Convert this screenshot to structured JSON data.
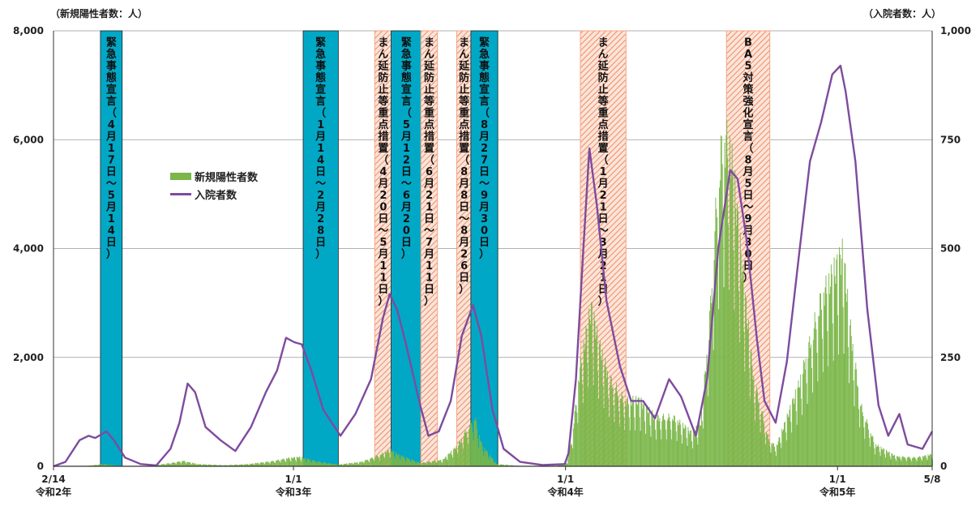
{
  "units": {
    "left": "（新規陽性者数：人）",
    "right": "（入院者数：人）"
  },
  "legend": {
    "bars": "新規陽性者数",
    "line": "入院者数"
  },
  "colors": {
    "bars": "#7ab648",
    "line": "#7e4b9e",
    "emergency": "#00a8c6",
    "semi": "#f4a584",
    "grid": "#999999"
  },
  "chart_data": {
    "type": "bar",
    "x_range": [
      "2020-02-14",
      "2023-05-08"
    ],
    "x_ticks": [
      {
        "date": "2020-02-14",
        "label1": "2/14",
        "label2": "令和2年"
      },
      {
        "date": "2021-01-01",
        "label1": "1/1",
        "label2": "令和3年"
      },
      {
        "date": "2022-01-01",
        "label1": "1/1",
        "label2": "令和4年"
      },
      {
        "date": "2023-01-01",
        "label1": "1/1",
        "label2": "令和5年"
      },
      {
        "date": "2023-05-08",
        "label1": "5/8",
        "label2": ""
      }
    ],
    "y_left": {
      "range": [
        0,
        8000
      ],
      "ticks": [
        "0",
        "2,000",
        "4,000",
        "6,000",
        "8,000"
      ]
    },
    "y_right": {
      "range": [
        0,
        1000
      ],
      "ticks": [
        "0",
        "250",
        "500",
        "750",
        "1,000"
      ]
    },
    "periods": [
      {
        "kind": "emergency",
        "start": "2020-04-17",
        "end": "2020-05-14",
        "text": "緊急事態宣言（4月17日～5月14日）"
      },
      {
        "kind": "emergency",
        "start": "2021-01-14",
        "end": "2021-02-28",
        "text": "緊急事態宣言（1月14日～2月28日）"
      },
      {
        "kind": "semi",
        "start": "2021-04-20",
        "end": "2021-05-11",
        "text": "まん延防止等重点措置（4月20日～5月11日）"
      },
      {
        "kind": "emergency",
        "start": "2021-05-12",
        "end": "2021-06-20",
        "text": "緊急事態宣言（5月12日～6月20日）"
      },
      {
        "kind": "semi",
        "start": "2021-06-21",
        "end": "2021-07-11",
        "text": "まん延防止等重点措置（6月21日～7月11日）"
      },
      {
        "kind": "semi",
        "start": "2021-08-08",
        "end": "2021-08-26",
        "text": "まん延防止等重点措置（8月8日～8月26日）"
      },
      {
        "kind": "emergency",
        "start": "2021-08-27",
        "end": "2021-09-30",
        "text": "緊急事態宣言（8月27日～9月30日）"
      },
      {
        "kind": "semi",
        "start": "2022-01-21",
        "end": "2022-03-21",
        "text": "まん延防止等重点措置（1月21日～3月21日）"
      },
      {
        "kind": "semi",
        "start": "2022-08-05",
        "end": "2022-09-30",
        "text": "BA5対策強化宣言（8月5日～9月30日）"
      }
    ],
    "series": [
      {
        "name": "新規陽性者数",
        "axis": "left",
        "points": [
          [
            "2020-02-14",
            0
          ],
          [
            "2020-04-01",
            10
          ],
          [
            "2020-04-20",
            40
          ],
          [
            "2020-05-15",
            5
          ],
          [
            "2020-06-20",
            5
          ],
          [
            "2020-07-20",
            60
          ],
          [
            "2020-08-05",
            100
          ],
          [
            "2020-08-25",
            40
          ],
          [
            "2020-09-30",
            20
          ],
          [
            "2020-11-01",
            40
          ],
          [
            "2020-12-01",
            90
          ],
          [
            "2020-12-25",
            150
          ],
          [
            "2021-01-10",
            170
          ],
          [
            "2021-02-01",
            90
          ],
          [
            "2021-03-01",
            30
          ],
          [
            "2021-04-01",
            80
          ],
          [
            "2021-04-25",
            200
          ],
          [
            "2021-05-10",
            300
          ],
          [
            "2021-05-20",
            220
          ],
          [
            "2021-06-20",
            60
          ],
          [
            "2021-07-20",
            120
          ],
          [
            "2021-08-10",
            400
          ],
          [
            "2021-08-22",
            700
          ],
          [
            "2021-09-01",
            900
          ],
          [
            "2021-09-10",
            400
          ],
          [
            "2021-09-30",
            40
          ],
          [
            "2021-11-01",
            8
          ],
          [
            "2021-12-20",
            10
          ],
          [
            "2022-01-03",
            80
          ],
          [
            "2022-01-10",
            600
          ],
          [
            "2022-01-20",
            1800
          ],
          [
            "2022-01-28",
            2400
          ],
          [
            "2022-02-04",
            2900
          ],
          [
            "2022-02-15",
            2200
          ],
          [
            "2022-03-01",
            1600
          ],
          [
            "2022-03-21",
            1200
          ],
          [
            "2022-04-10",
            1200
          ],
          [
            "2022-05-01",
            900
          ],
          [
            "2022-05-25",
            900
          ],
          [
            "2022-06-20",
            600
          ],
          [
            "2022-07-01",
            800
          ],
          [
            "2022-07-12",
            2500
          ],
          [
            "2022-07-22",
            4800
          ],
          [
            "2022-07-30",
            6000
          ],
          [
            "2022-08-08",
            5900
          ],
          [
            "2022-08-15",
            5200
          ],
          [
            "2022-08-25",
            3700
          ],
          [
            "2022-09-10",
            1600
          ],
          [
            "2022-09-30",
            500
          ],
          [
            "2022-10-10",
            350
          ],
          [
            "2022-10-25",
            900
          ],
          [
            "2022-11-10",
            1500
          ],
          [
            "2022-11-25",
            2300
          ],
          [
            "2022-12-10",
            3100
          ],
          [
            "2022-12-25",
            3500
          ],
          [
            "2023-01-08",
            3900
          ],
          [
            "2023-01-18",
            2500
          ],
          [
            "2023-02-01",
            1100
          ],
          [
            "2023-02-20",
            400
          ],
          [
            "2023-03-20",
            180
          ],
          [
            "2023-04-15",
            160
          ],
          [
            "2023-05-08",
            220
          ]
        ]
      },
      {
        "name": "入院者数",
        "axis": "right",
        "points": [
          [
            "2020-02-14",
            0
          ],
          [
            "2020-03-01",
            10
          ],
          [
            "2020-03-20",
            60
          ],
          [
            "2020-04-01",
            70
          ],
          [
            "2020-04-10",
            65
          ],
          [
            "2020-04-25",
            80
          ],
          [
            "2020-05-05",
            60
          ],
          [
            "2020-05-20",
            20
          ],
          [
            "2020-06-10",
            5
          ],
          [
            "2020-07-01",
            2
          ],
          [
            "2020-07-20",
            40
          ],
          [
            "2020-08-01",
            100
          ],
          [
            "2020-08-12",
            190
          ],
          [
            "2020-08-22",
            170
          ],
          [
            "2020-09-05",
            90
          ],
          [
            "2020-09-25",
            60
          ],
          [
            "2020-10-15",
            35
          ],
          [
            "2020-11-05",
            90
          ],
          [
            "2020-11-25",
            170
          ],
          [
            "2020-12-10",
            220
          ],
          [
            "2020-12-22",
            295
          ],
          [
            "2021-01-02",
            285
          ],
          [
            "2021-01-12",
            280
          ],
          [
            "2021-01-25",
            220
          ],
          [
            "2021-02-10",
            130
          ],
          [
            "2021-03-05",
            70
          ],
          [
            "2021-03-25",
            120
          ],
          [
            "2021-04-15",
            200
          ],
          [
            "2021-05-01",
            340
          ],
          [
            "2021-05-10",
            395
          ],
          [
            "2021-05-20",
            360
          ],
          [
            "2021-06-01",
            280
          ],
          [
            "2021-06-20",
            140
          ],
          [
            "2021-07-01",
            70
          ],
          [
            "2021-07-15",
            80
          ],
          [
            "2021-07-31",
            150
          ],
          [
            "2021-08-15",
            300
          ],
          [
            "2021-08-30",
            370
          ],
          [
            "2021-09-10",
            300
          ],
          [
            "2021-09-25",
            130
          ],
          [
            "2021-10-10",
            40
          ],
          [
            "2021-11-01",
            10
          ],
          [
            "2021-12-01",
            3
          ],
          [
            "2021-12-31",
            5
          ],
          [
            "2022-01-05",
            30
          ],
          [
            "2022-01-15",
            200
          ],
          [
            "2022-01-25",
            500
          ],
          [
            "2022-02-02",
            730
          ],
          [
            "2022-02-12",
            600
          ],
          [
            "2022-02-25",
            380
          ],
          [
            "2022-03-15",
            230
          ],
          [
            "2022-03-30",
            150
          ],
          [
            "2022-04-15",
            150
          ],
          [
            "2022-05-01",
            110
          ],
          [
            "2022-05-20",
            200
          ],
          [
            "2022-06-05",
            160
          ],
          [
            "2022-06-25",
            70
          ],
          [
            "2022-07-10",
            200
          ],
          [
            "2022-07-25",
            500
          ],
          [
            "2022-08-10",
            680
          ],
          [
            "2022-08-20",
            660
          ],
          [
            "2022-09-01",
            520
          ],
          [
            "2022-09-15",
            290
          ],
          [
            "2022-09-25",
            150
          ],
          [
            "2022-10-10",
            100
          ],
          [
            "2022-10-25",
            240
          ],
          [
            "2022-11-10",
            480
          ],
          [
            "2022-11-25",
            700
          ],
          [
            "2022-12-10",
            790
          ],
          [
            "2022-12-25",
            900
          ],
          [
            "2023-01-05",
            920
          ],
          [
            "2023-01-12",
            860
          ],
          [
            "2023-01-25",
            700
          ],
          [
            "2023-02-10",
            360
          ],
          [
            "2023-02-25",
            140
          ],
          [
            "2023-03-10",
            70
          ],
          [
            "2023-03-25",
            120
          ],
          [
            "2023-04-05",
            50
          ],
          [
            "2023-04-25",
            40
          ],
          [
            "2023-05-08",
            80
          ]
        ]
      }
    ]
  }
}
